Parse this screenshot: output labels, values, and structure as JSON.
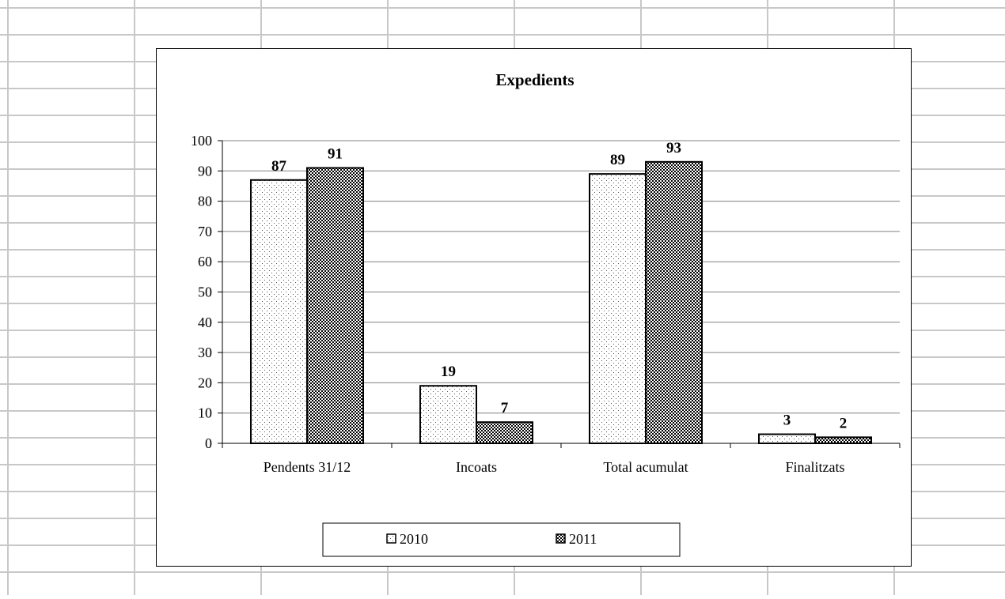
{
  "chart_data": {
    "type": "bar",
    "title": "Expedients",
    "categories": [
      "Pendents 31/12",
      "Incoats",
      "Total acumulat",
      "Finalitzats"
    ],
    "series": [
      {
        "name": "2010",
        "values": [
          87,
          19,
          89,
          3
        ],
        "pattern": "dotted",
        "color": "#ffffff"
      },
      {
        "name": "2011",
        "values": [
          91,
          7,
          93,
          2
        ],
        "pattern": "checkered",
        "color": "#000000"
      }
    ],
    "ylim": [
      0,
      100
    ],
    "yticks": [
      0,
      10,
      20,
      30,
      40,
      50,
      60,
      70,
      80,
      90,
      100
    ],
    "xlabel": "",
    "ylabel": "",
    "grid": true,
    "legend_position": "bottom"
  }
}
